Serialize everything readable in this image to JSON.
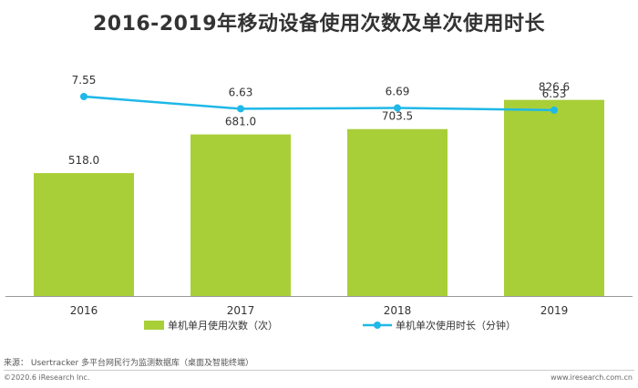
{
  "chart_data": {
    "type": "bar",
    "title": "2016-2019年移动设备使用次数及单次使用时长",
    "categories": [
      "2016",
      "2017",
      "2018",
      "2019"
    ],
    "series": [
      {
        "name": "单机单月使用次数（次）",
        "type": "bar",
        "values": [
          518.0,
          681.0,
          703.5,
          826.6
        ],
        "labels": [
          "518.0",
          "681.0",
          "703.5",
          "826.6"
        ],
        "color": "#a9cf38"
      },
      {
        "name": "单机单次使用时长（分钟）",
        "type": "line",
        "values": [
          7.55,
          6.63,
          6.69,
          6.53
        ],
        "labels": [
          "7.55",
          "6.63",
          "6.69",
          "6.53"
        ],
        "color": "#1fb8e8"
      }
    ],
    "grid": false,
    "legend": "bottom"
  },
  "footer": {
    "source": "来源：  Usertracker 多平台网民行为监测数据库（桌面及智能终端）",
    "copyright": "©2020.6 iResearch Inc.",
    "website": "www.iresearch.com.cn"
  }
}
